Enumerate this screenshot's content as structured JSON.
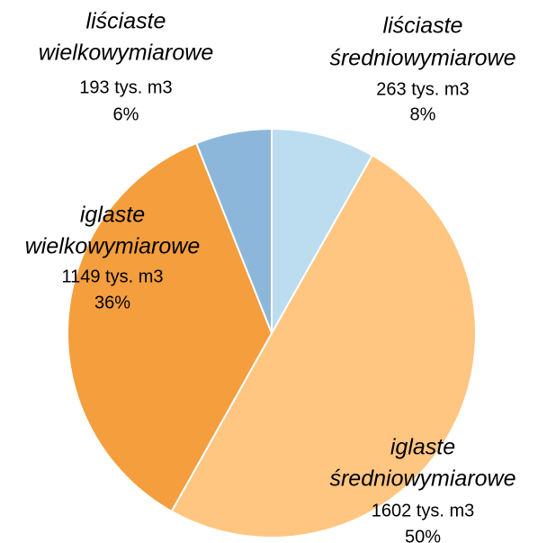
{
  "chart_data": {
    "type": "pie",
    "categories": [
      [
        "liściaste",
        "średniowymiarowe"
      ],
      [
        "iglaste",
        "średniowymiarowe"
      ],
      [
        "iglaste",
        "wielkowymiarowe"
      ],
      [
        "liściaste",
        "wielkowymiarowe"
      ]
    ],
    "values": [
      263,
      1602,
      1149,
      193
    ],
    "value_labels": [
      "263 tys. m3",
      "1602 tys. m3",
      "1149 tys. m3",
      "193 tys. m3"
    ],
    "percent_labels": [
      "8%",
      "50%",
      "36%",
      "6%"
    ],
    "colors": [
      "#bcdcf0",
      "#ffc682",
      "#f49e3e",
      "#8db7da"
    ]
  }
}
